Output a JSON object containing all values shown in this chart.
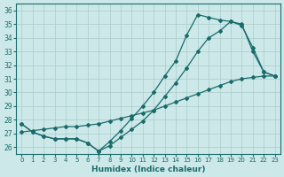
{
  "xlabel": "Humidex (Indice chaleur)",
  "xlim": [
    -0.5,
    23.5
  ],
  "ylim": [
    25.5,
    36.5
  ],
  "xticks": [
    0,
    1,
    2,
    3,
    4,
    5,
    6,
    7,
    8,
    9,
    10,
    11,
    12,
    13,
    14,
    15,
    16,
    17,
    18,
    19,
    20,
    21,
    22,
    23
  ],
  "yticks": [
    26,
    27,
    28,
    29,
    30,
    31,
    32,
    33,
    34,
    35,
    36
  ],
  "background_color": "#cce8e8",
  "grid_color": "#aacccc",
  "line_color": "#1a6b6b",
  "line1_x": [
    0,
    1,
    2,
    3,
    4,
    5,
    6,
    7,
    8,
    9,
    10,
    11,
    12,
    13,
    14,
    15,
    16,
    17,
    18,
    19,
    20,
    21,
    22,
    23
  ],
  "line1_y": [
    27.7,
    27.1,
    26.8,
    26.6,
    26.6,
    26.6,
    26.3,
    25.7,
    26.4,
    27.2,
    28.1,
    29.0,
    30.0,
    31.2,
    32.3,
    34.2,
    35.7,
    35.5,
    35.3,
    35.2,
    35.0,
    33.0,
    31.5,
    31.2
  ],
  "line2_x": [
    0,
    1,
    2,
    3,
    4,
    5,
    6,
    7,
    8,
    9,
    10,
    11,
    12,
    13,
    14,
    15,
    16,
    17,
    18,
    19,
    20,
    21,
    22,
    23
  ],
  "line2_y": [
    27.7,
    27.1,
    26.8,
    26.6,
    26.6,
    26.6,
    26.3,
    25.7,
    26.1,
    26.7,
    27.3,
    27.9,
    28.7,
    29.7,
    30.7,
    31.8,
    33.0,
    34.0,
    34.5,
    35.2,
    34.9,
    33.3,
    31.5,
    31.2
  ],
  "line3_x": [
    0,
    1,
    2,
    3,
    4,
    5,
    6,
    7,
    8,
    9,
    10,
    11,
    12,
    13,
    14,
    15,
    16,
    17,
    18,
    19,
    20,
    21,
    22,
    23
  ],
  "line3_y": [
    27.1,
    27.2,
    27.3,
    27.4,
    27.5,
    27.5,
    27.6,
    27.7,
    27.9,
    28.1,
    28.3,
    28.5,
    28.7,
    29.0,
    29.3,
    29.6,
    29.9,
    30.2,
    30.5,
    30.8,
    31.0,
    31.1,
    31.2,
    31.2
  ]
}
